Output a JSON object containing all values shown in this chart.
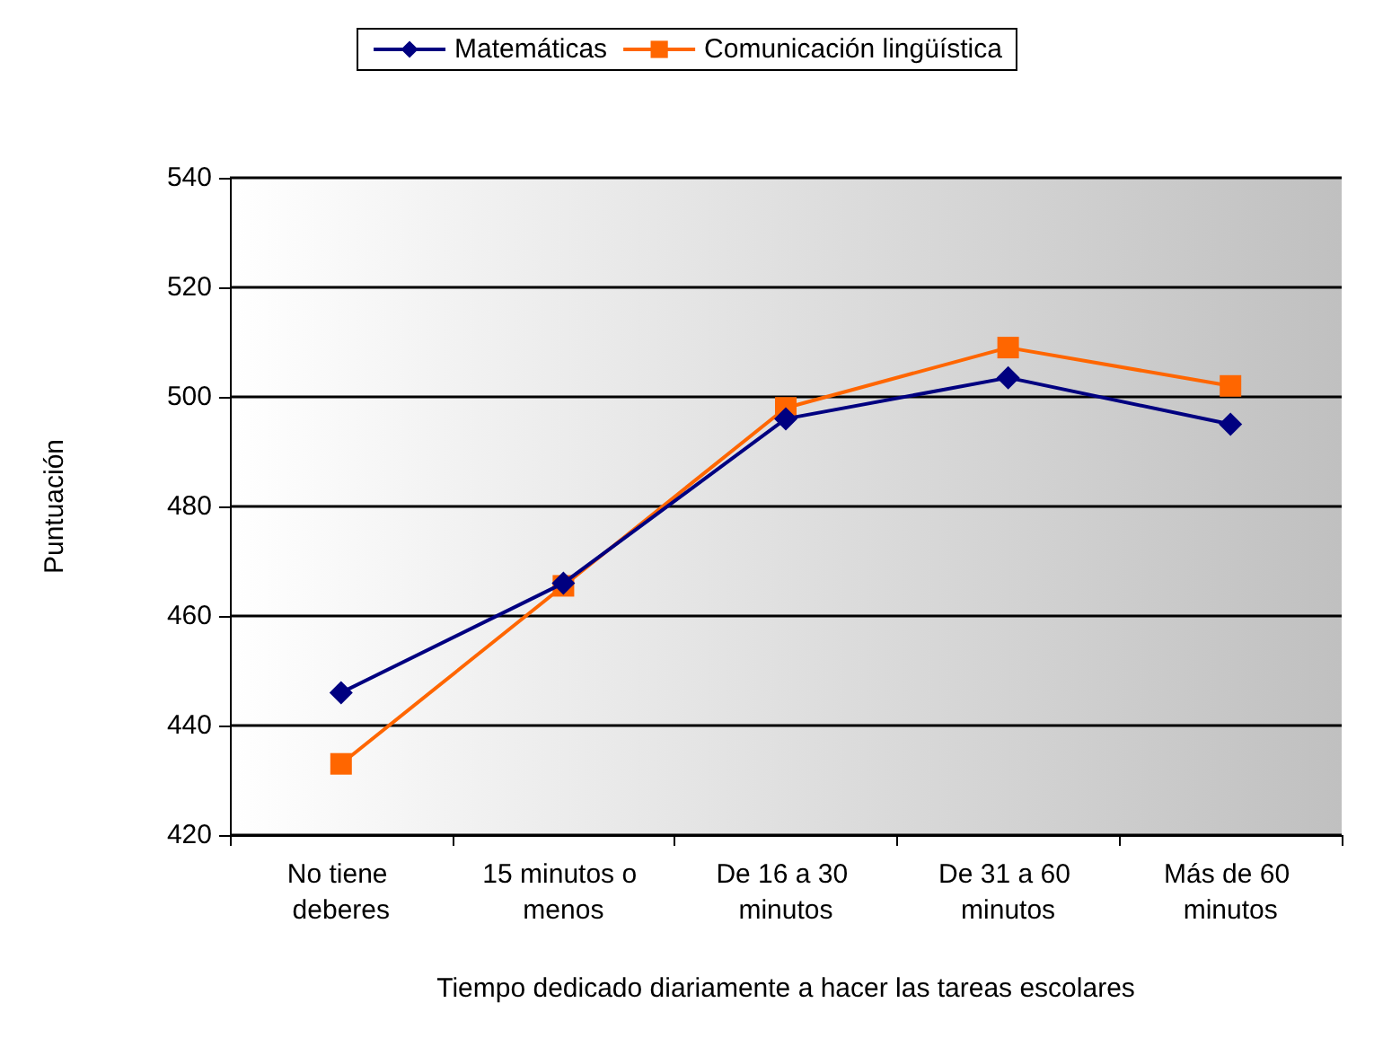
{
  "chart_data": {
    "type": "line",
    "xlabel": "Tiempo dedicado diariamente a hacer las tareas escolares",
    "ylabel": "Puntuación",
    "categories": [
      "No tiene deberes",
      "15 minutos o menos",
      "De 16 a 30 minutos",
      "De 31 a 60 minutos",
      "Más de 60 minutos"
    ],
    "series": [
      {
        "name": "Matemáticas",
        "color": "#000080",
        "marker": "diamond",
        "values": [
          446,
          466,
          496,
          503.5,
          495
        ]
      },
      {
        "name": "Comunicación lingüística",
        "color": "#ff6600",
        "marker": "square",
        "values": [
          433,
          465.5,
          498,
          509,
          502
        ]
      }
    ],
    "ylim": [
      420,
      540
    ],
    "yticks": [
      420,
      440,
      460,
      480,
      500,
      520,
      540
    ],
    "grid": "y",
    "legend": "top",
    "line_style": "solid"
  }
}
